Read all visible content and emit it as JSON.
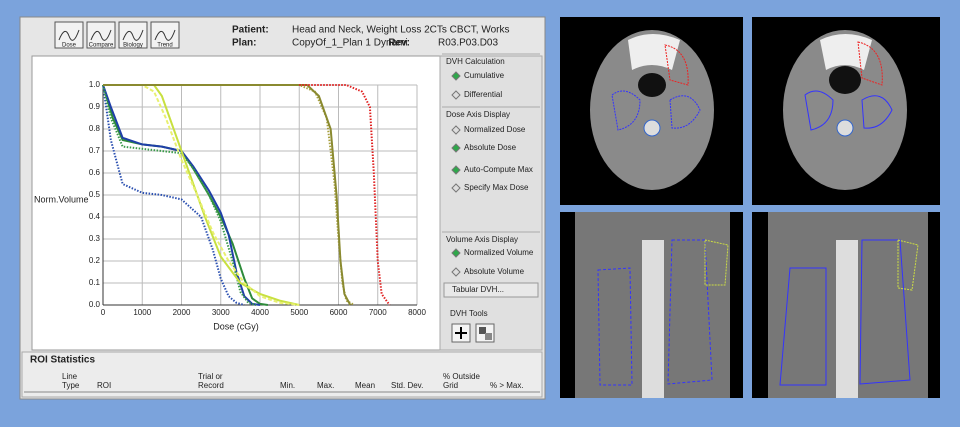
{
  "toolbar": [
    "Dose",
    "Compare",
    "Biology",
    "Trend"
  ],
  "patient": {
    "label": "Patient:",
    "value": "Head and Neck, Weight Loss 2CTs CBCT, Works"
  },
  "plan": {
    "label": "Plan:",
    "value": "CopyOf_1_Plan 1 Dynami",
    "rev_label": "Rev:",
    "rev": "R03.P03.D03"
  },
  "chart_data": {
    "type": "line",
    "xlabel": "Dose (cGy)",
    "ylabel": "Norm.Volume",
    "xlim": [
      0,
      8000
    ],
    "ylim": [
      0,
      1
    ],
    "xticks": [
      0,
      1000,
      2000,
      3000,
      4000,
      5000,
      6000,
      7000,
      8000
    ],
    "yticks": [
      {
        "value": 0,
        "label": "0.0"
      },
      0.1,
      0.2,
      0.3,
      0.4,
      0.5,
      0.6,
      0.7,
      0.8,
      0.9,
      {
        "value": 1,
        "label": "1.0"
      }
    ],
    "grid": true,
    "series": [
      {
        "color": "#2e8b3a",
        "style": "solid",
        "x": [
          0,
          250,
          500,
          1000,
          1500,
          2000,
          2300,
          2700,
          3000,
          3300,
          3600,
          3800,
          4000,
          4200
        ],
        "values": [
          1,
          0.85,
          0.75,
          0.73,
          0.72,
          0.7,
          0.62,
          0.5,
          0.4,
          0.28,
          0.12,
          0.03,
          0.005,
          0
        ]
      },
      {
        "color": "#1f3fa8",
        "style": "solid",
        "x": [
          0,
          200,
          500,
          1000,
          1500,
          2000,
          2300,
          2700,
          3000,
          3200,
          3400,
          3600,
          3800,
          4000
        ],
        "values": [
          1,
          0.9,
          0.76,
          0.73,
          0.72,
          0.7,
          0.63,
          0.52,
          0.42,
          0.32,
          0.15,
          0.04,
          0.005,
          0
        ]
      },
      {
        "color": "#2a4fb0",
        "style": "dotted",
        "x": [
          0,
          200,
          500,
          1000,
          1500,
          2000,
          2500,
          2800,
          3000,
          3200,
          3400,
          3600
        ],
        "values": [
          1,
          0.75,
          0.55,
          0.51,
          0.5,
          0.48,
          0.4,
          0.25,
          0.12,
          0.04,
          0.01,
          0
        ]
      },
      {
        "color": "#3a9a4a",
        "style": "dotted",
        "x": [
          0,
          200,
          500,
          1000,
          1500,
          2000,
          2300,
          2700,
          3000,
          3300,
          3500,
          3700,
          3900
        ],
        "values": [
          1,
          0.85,
          0.72,
          0.71,
          0.7,
          0.69,
          0.62,
          0.5,
          0.38,
          0.2,
          0.06,
          0.01,
          0
        ]
      },
      {
        "color": "#c8e040",
        "style": "solid",
        "x": [
          0,
          1300,
          1500,
          1700,
          2000,
          2300,
          2600,
          3000,
          3500,
          4000,
          4500,
          5000
        ],
        "values": [
          1,
          1,
          0.95,
          0.85,
          0.7,
          0.55,
          0.4,
          0.22,
          0.1,
          0.05,
          0.02,
          0
        ]
      },
      {
        "color": "#e8f070",
        "style": "dashed",
        "x": [
          0,
          1000,
          1300,
          1600,
          2000,
          2400,
          2800,
          3200,
          3600,
          4000,
          4500,
          5000
        ],
        "values": [
          1,
          1,
          0.97,
          0.85,
          0.66,
          0.5,
          0.33,
          0.2,
          0.1,
          0.04,
          0.01,
          0
        ]
      },
      {
        "color": "#a8a040",
        "style": "dotted",
        "x": [
          0,
          5000,
          5400,
          5700,
          5900,
          6000,
          6100,
          6200,
          6400
        ],
        "values": [
          1,
          1,
          0.97,
          0.85,
          0.55,
          0.3,
          0.1,
          0.02,
          0
        ]
      },
      {
        "color": "#8a8a30",
        "style": "solid",
        "x": [
          0,
          5200,
          5500,
          5800,
          5950,
          6050,
          6150,
          6300
        ],
        "values": [
          1,
          1,
          0.95,
          0.8,
          0.5,
          0.2,
          0.05,
          0
        ]
      },
      {
        "color": "#e02020",
        "style": "dotted",
        "x": [
          5000,
          6200,
          6600,
          6800,
          6900,
          7000,
          7100,
          7300
        ],
        "values": [
          1,
          1,
          0.97,
          0.9,
          0.6,
          0.2,
          0.05,
          0
        ]
      }
    ]
  },
  "controls": [
    {
      "title": "DVH Calculation",
      "options": [
        {
          "label": "Cumulative",
          "selected": true
        },
        {
          "label": "Differential",
          "selected": false
        }
      ]
    },
    {
      "title": "Dose Axis Display",
      "options": [
        {
          "label": "Normalized Dose",
          "selected": false
        },
        {
          "label": "Absolute Dose",
          "selected": true
        },
        {
          "label": "Auto-Compute Max",
          "selected": true
        },
        {
          "label": "Specify Max Dose",
          "selected": false
        }
      ]
    },
    {
      "title": "Volume Axis Display",
      "options": [
        {
          "label": "Normalized Volume",
          "selected": true
        },
        {
          "label": "Absolute Volume",
          "selected": false
        }
      ]
    }
  ],
  "tabular_button": "Tabular DVH...",
  "tools_title": "DVH Tools",
  "roi_statistics": {
    "title": "ROI Statistics",
    "columns": [
      [
        "Line",
        "Type"
      ],
      [
        "ROI"
      ],
      [
        "Trial or",
        "Record"
      ],
      [
        "Min."
      ],
      [
        "Max."
      ],
      [
        "Mean"
      ],
      [
        "Std. Dev."
      ],
      [
        "% Outside",
        "Grid"
      ],
      [
        "% > Max."
      ]
    ]
  }
}
